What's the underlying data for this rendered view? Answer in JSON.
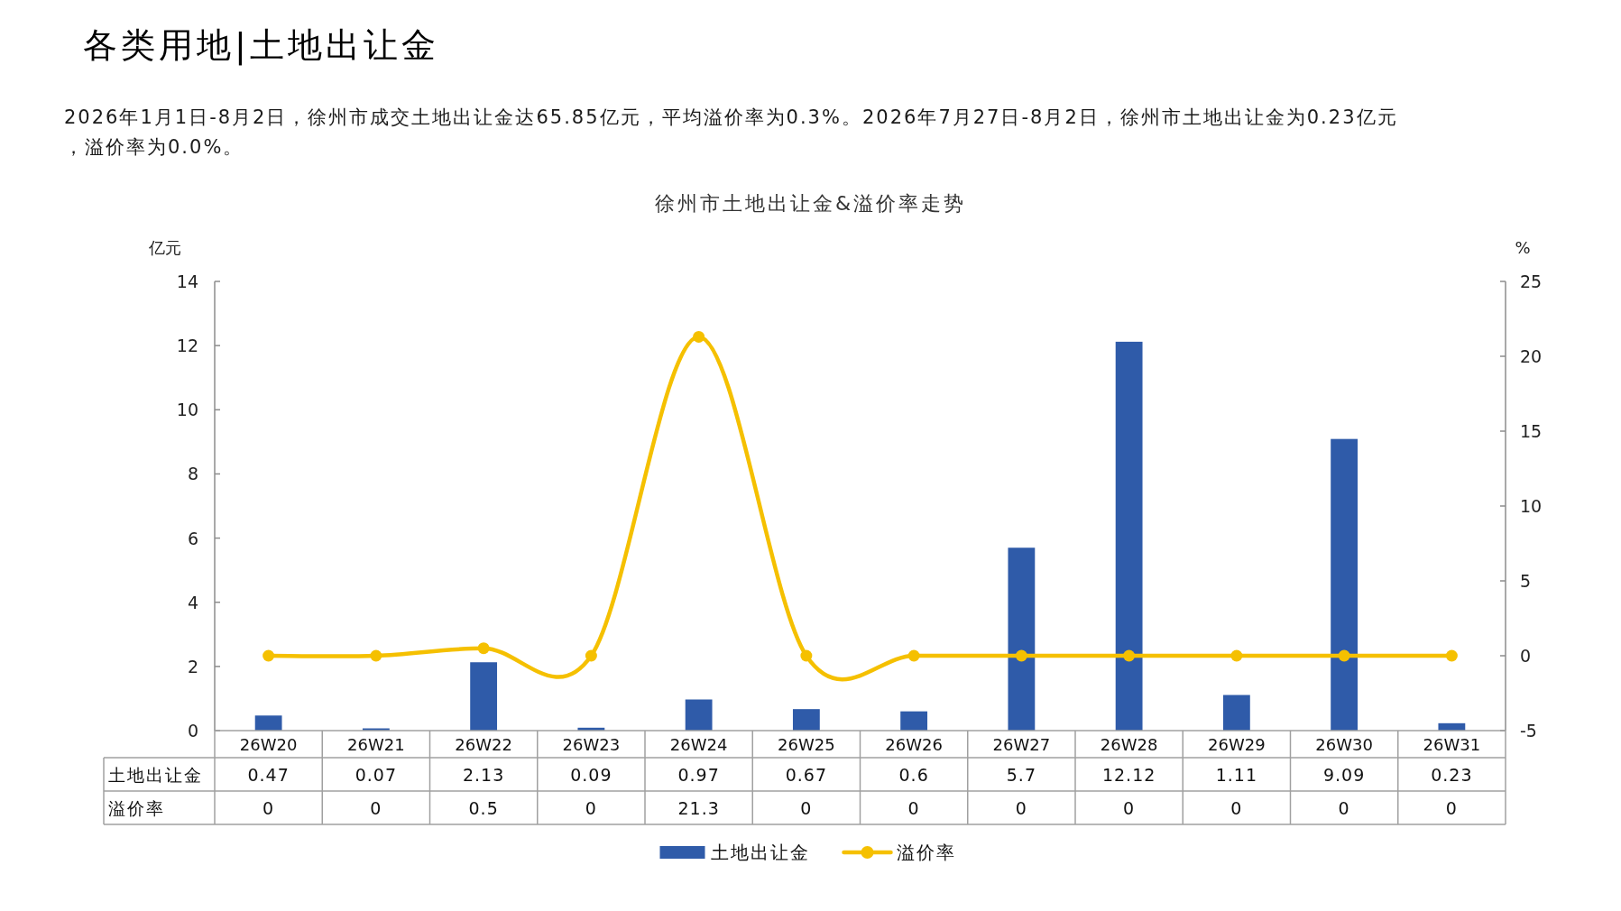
{
  "chart_data": {
    "type": "bar",
    "title": "各类用地|土地出让金",
    "subtitle": "2026年1月1日-8月2日，徐州市成交土地出让金达65.85亿元，平均溢价率为0.3%。2026年7月27日-8月2日，徐州市土地出让金为0.23亿元，溢价率为0.0%。",
    "annotations": [
      "徐州市土地出让金&溢价率走势"
    ],
    "categories": [
      "26W20",
      "26W21",
      "26W22",
      "26W23",
      "26W24",
      "26W25",
      "26W26",
      "26W27",
      "26W28",
      "26W29",
      "26W30",
      "26W31"
    ],
    "series": [
      {
        "name": "土地出让金",
        "color": "#2f5ba9",
        "values": [
          0.47,
          0.07,
          2.13,
          0.09,
          0.97,
          0.67,
          0.6,
          5.7,
          12.12,
          1.11,
          9.09,
          0.23
        ]
      },
      {
        "name": "溢价率",
        "type": "line",
        "axis": "y2",
        "color": "#f5c000",
        "values": [
          0,
          0,
          0.5,
          0,
          21.3,
          0,
          0,
          0,
          0,
          0,
          0,
          0
        ]
      }
    ],
    "ylabel": "亿元",
    "y2label": "%",
    "ylim": [
      0,
      14
    ],
    "yticks": [
      0,
      2,
      4,
      6,
      8,
      10,
      12,
      14
    ],
    "y2lim": [
      -5,
      25
    ],
    "y2ticks": [
      -5,
      0,
      5,
      10,
      15,
      20,
      25
    ],
    "legend": "bottom",
    "marker": "circle",
    "data_labels": true
  }
}
